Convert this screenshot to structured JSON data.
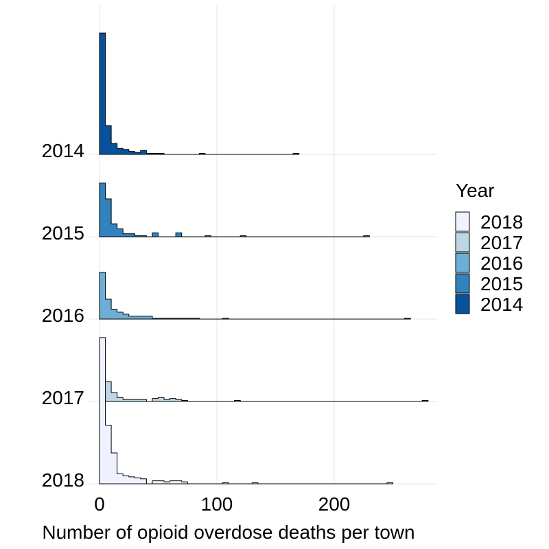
{
  "chart_data": {
    "type": "ridgeline-histogram",
    "xlabel": "Number of opioid overdose deaths per town",
    "xlim": [
      -5,
      285
    ],
    "x_ticks": [
      0,
      100,
      200
    ],
    "y_categories": [
      "2014",
      "2015",
      "2016",
      "2017",
      "2018"
    ],
    "bin_width": 5,
    "height_unit": "relative density",
    "grid": true,
    "legend": {
      "title": "Year",
      "position": "right",
      "entries": [
        {
          "label": "2018",
          "color": "#EFF3FF"
        },
        {
          "label": "2017",
          "color": "#BDD7E7"
        },
        {
          "label": "2016",
          "color": "#6BAED6"
        },
        {
          "label": "2015",
          "color": "#3182BD"
        },
        {
          "label": "2014",
          "color": "#08519C"
        }
      ]
    },
    "series": [
      {
        "name": "2014",
        "color": "#08519C",
        "bins": [
          [
            0,
            1.22
          ],
          [
            5,
            0.29
          ],
          [
            10,
            0.11
          ],
          [
            15,
            0.06
          ],
          [
            20,
            0.05
          ],
          [
            25,
            0.03
          ],
          [
            30,
            0.02
          ],
          [
            35,
            0.04
          ],
          [
            40,
            0.01
          ],
          [
            45,
            0.01
          ],
          [
            50,
            0.01
          ],
          [
            85,
            0.01
          ],
          [
            165,
            0.01
          ]
        ]
      },
      {
        "name": "2015",
        "color": "#3182BD",
        "bins": [
          [
            0,
            0.54
          ],
          [
            5,
            0.38
          ],
          [
            10,
            0.13
          ],
          [
            15,
            0.08
          ],
          [
            20,
            0.03
          ],
          [
            25,
            0.03
          ],
          [
            30,
            0.01
          ],
          [
            35,
            0.01
          ],
          [
            45,
            0.04
          ],
          [
            65,
            0.04
          ],
          [
            90,
            0.01
          ],
          [
            120,
            0.01
          ],
          [
            225,
            0.01
          ]
        ]
      },
      {
        "name": "2016",
        "color": "#6BAED6",
        "bins": [
          [
            0,
            0.47
          ],
          [
            5,
            0.2
          ],
          [
            10,
            0.1
          ],
          [
            15,
            0.07
          ],
          [
            20,
            0.05
          ],
          [
            25,
            0.03
          ],
          [
            30,
            0.03
          ],
          [
            35,
            0.03
          ],
          [
            40,
            0.03
          ],
          [
            45,
            0.01
          ],
          [
            50,
            0.01
          ],
          [
            55,
            0.01
          ],
          [
            60,
            0.01
          ],
          [
            65,
            0.01
          ],
          [
            70,
            0.01
          ],
          [
            75,
            0.01
          ],
          [
            80,
            0.01
          ],
          [
            105,
            0.01
          ],
          [
            260,
            0.01
          ]
        ]
      },
      {
        "name": "2017",
        "color": "#BDD7E7",
        "bins": [
          [
            0,
            0.49
          ],
          [
            5,
            0.2
          ],
          [
            10,
            0.09
          ],
          [
            15,
            0.04
          ],
          [
            20,
            0.02
          ],
          [
            25,
            0.02
          ],
          [
            30,
            0.02
          ],
          [
            35,
            0.02
          ],
          [
            45,
            0.03
          ],
          [
            50,
            0.04
          ],
          [
            55,
            0.02
          ],
          [
            60,
            0.03
          ],
          [
            65,
            0.02
          ],
          [
            70,
            0.01
          ],
          [
            115,
            0.01
          ],
          [
            275,
            0.01
          ]
        ]
      },
      {
        "name": "2018",
        "color": "#EFF3FF",
        "bins": [
          [
            0,
            1.47
          ],
          [
            5,
            0.59
          ],
          [
            10,
            0.31
          ],
          [
            15,
            0.1
          ],
          [
            20,
            0.08
          ],
          [
            25,
            0.07
          ],
          [
            30,
            0.06
          ],
          [
            35,
            0.05
          ],
          [
            45,
            0.03
          ],
          [
            50,
            0.03
          ],
          [
            55,
            0.02
          ],
          [
            60,
            0.03
          ],
          [
            65,
            0.03
          ],
          [
            70,
            0.02
          ],
          [
            105,
            0.01
          ],
          [
            130,
            0.01
          ],
          [
            245,
            0.01
          ]
        ]
      }
    ]
  }
}
